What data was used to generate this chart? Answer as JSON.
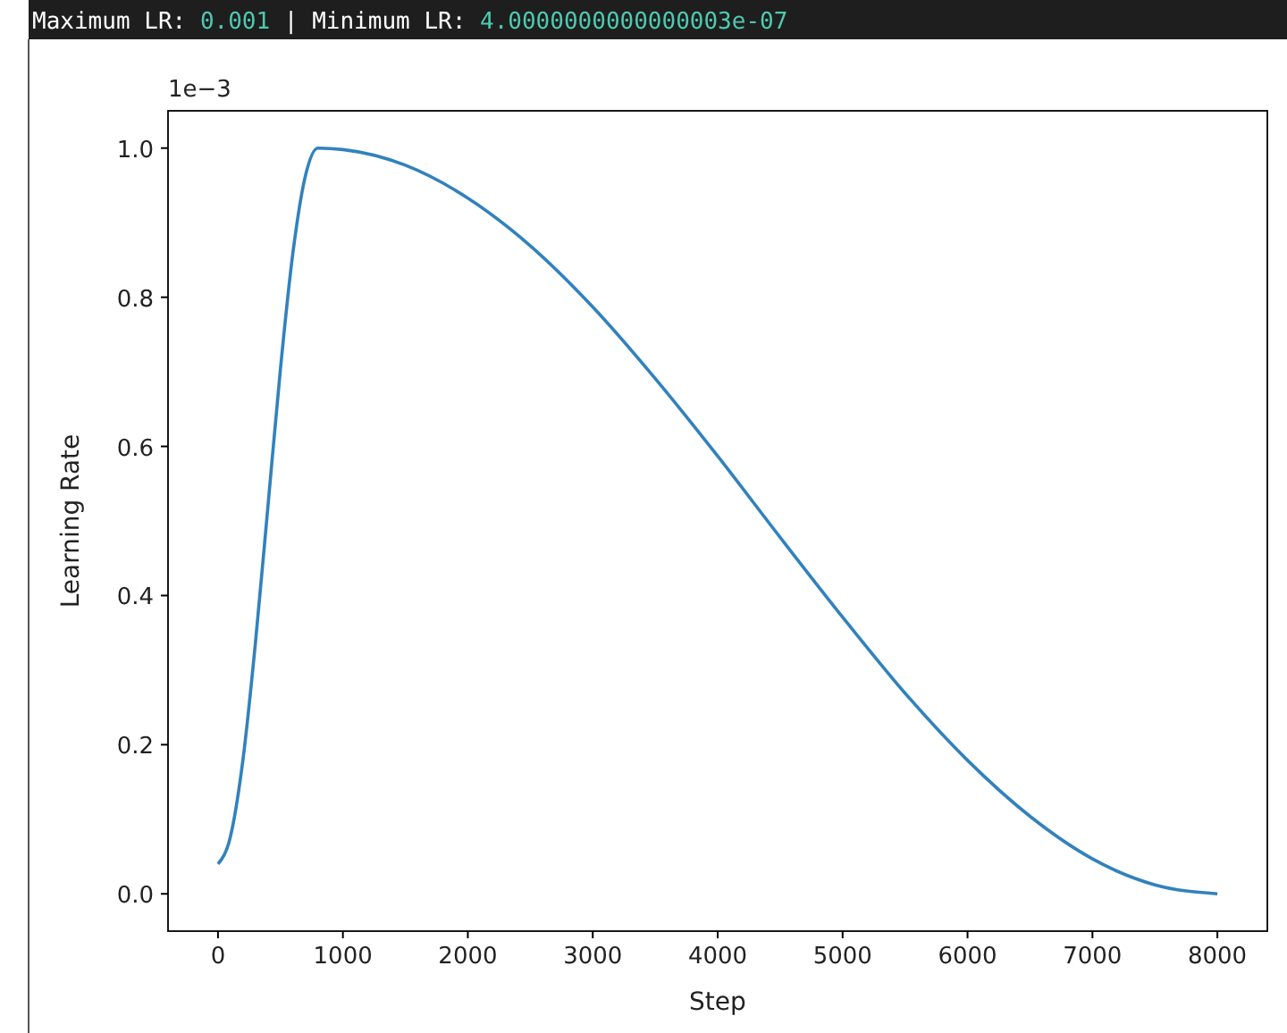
{
  "chart_data": {
    "type": "line",
    "title": "Maximum LR: 0.001 | Minimum LR: 4.0000000000000003e-07",
    "xlabel": "Step",
    "ylabel": "Learning Rate",
    "annotations": [
      "1e−3"
    ],
    "series": [
      {
        "color": "#3182bd",
        "x": [
          0,
          100,
          200,
          300,
          400,
          500,
          600,
          700,
          800,
          1000,
          1500,
          2000,
          2500,
          3000,
          3500,
          4000,
          4500,
          5000,
          5500,
          6000,
          6500,
          7000,
          7500,
          8000
        ],
        "values": [
          0.04,
          0.077,
          0.18,
          0.337,
          0.52,
          0.704,
          0.86,
          0.963,
          1.0,
          0.998,
          0.977,
          0.933,
          0.869,
          0.787,
          0.691,
          0.587,
          0.478,
          0.371,
          0.269,
          0.179,
          0.104,
          0.047,
          0.012,
          0.0
        ]
      }
    ],
    "xlim": [
      -400,
      8400
    ],
    "ylim": [
      -0.05,
      1.05
    ],
    "xticks": [
      0,
      1000,
      2000,
      3000,
      4000,
      5000,
      6000,
      7000,
      8000
    ],
    "yticks": [
      {
        "value": 0,
        "label": "0.0"
      },
      {
        "value": 0.2,
        "label": "0.2"
      },
      {
        "value": 0.4,
        "label": "0.4"
      },
      {
        "value": 0.6,
        "label": "0.6"
      },
      {
        "value": 0.8,
        "label": "0.8"
      },
      {
        "value": 1,
        "label": "1.0"
      }
    ],
    "grid": false
  }
}
